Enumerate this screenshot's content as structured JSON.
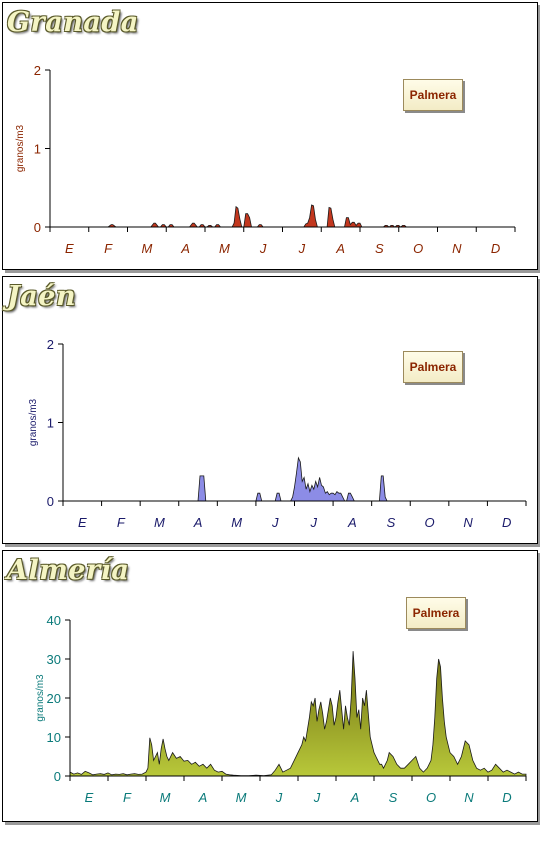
{
  "colors": {
    "granada_axis": "#8b2500",
    "granada_fill": "#c2371e",
    "jaen_axis": "#1a1a6a",
    "jaen_fill": "#8c8ce6",
    "almeria_axis": "#0a7a7a",
    "almeria_fill": "#8a8a14",
    "legend_text": "#8b2500"
  },
  "chart_data": [
    {
      "type": "area",
      "title": "Granada",
      "ylabel": "granos/m3",
      "legend": "Palmera",
      "legend_position": "top-right",
      "ylim": [
        0,
        2
      ],
      "yticks": [
        0,
        1,
        2
      ],
      "months": [
        "E",
        "F",
        "M",
        "A",
        "M",
        "J",
        "J",
        "A",
        "S",
        "O",
        "N",
        "D"
      ],
      "x": [
        0,
        1.5,
        1.58,
        1.62,
        1.7,
        2.6,
        2.68,
        2.72,
        2.8,
        2.85,
        2.9,
        2.95,
        3.0,
        3.05,
        3.1,
        3.15,
        3.2,
        3.25,
        3.3,
        3.6,
        3.68,
        3.72,
        3.8,
        3.85,
        3.9,
        3.95,
        4.0,
        4.05,
        4.1,
        4.15,
        4.2,
        4.25,
        4.3,
        4.35,
        4.4,
        4.45,
        4.5,
        4.55,
        4.6,
        4.65,
        4.7,
        4.75,
        4.8,
        4.85,
        4.9,
        4.95,
        5.0,
        5.05,
        5.1,
        5.15,
        5.2,
        5.25,
        5.3,
        5.35,
        5.4,
        5.45,
        5.5,
        5.55,
        5.6,
        5.65,
        5.7,
        6.55,
        6.6,
        6.65,
        6.7,
        6.75,
        6.8,
        6.85,
        6.9,
        6.95,
        7.0,
        7.05,
        7.1,
        7.15,
        7.2,
        7.25,
        7.3,
        7.35,
        7.4,
        7.6,
        7.65,
        7.7,
        7.75,
        7.8,
        7.85,
        7.9,
        7.95,
        8.0,
        8.05,
        8.1,
        8.15,
        8.2,
        8.25,
        8.3,
        8.6,
        8.65,
        8.7,
        8.75,
        8.8,
        8.85,
        8.9,
        8.95,
        9.0,
        9.05,
        9.1,
        9.15,
        9.2,
        9.3,
        12
      ],
      "y": [
        0,
        0,
        0.03,
        0.03,
        0,
        0,
        0.05,
        0.05,
        0,
        0,
        0.03,
        0.03,
        0,
        0,
        0.03,
        0.03,
        0,
        0,
        0,
        0,
        0.05,
        0.05,
        0,
        0,
        0.03,
        0.03,
        0,
        0,
        0.02,
        0.02,
        0,
        0,
        0.03,
        0.03,
        0,
        0,
        0,
        0,
        0,
        0,
        0,
        0.05,
        0.26,
        0.24,
        0.1,
        0,
        0,
        0.17,
        0.17,
        0.12,
        0,
        0,
        0,
        0,
        0.03,
        0.03,
        0,
        0,
        0,
        0,
        0,
        0,
        0.04,
        0.05,
        0.12,
        0.28,
        0.27,
        0.1,
        0,
        0,
        0,
        0,
        0,
        0,
        0.25,
        0.24,
        0.1,
        0,
        0,
        0,
        0.12,
        0.12,
        0.03,
        0.06,
        0.06,
        0.02,
        0.05,
        0.05,
        0,
        0,
        0,
        0,
        0,
        0,
        0,
        0.02,
        0.02,
        0,
        0.02,
        0.02,
        0,
        0.02,
        0.02,
        0,
        0.02,
        0.02,
        0,
        0,
        0
      ]
    },
    {
      "type": "area",
      "title": "Jaén",
      "ylabel": "granos/m3",
      "legend": "Palmera",
      "legend_position": "top-right",
      "ylim": [
        0,
        2
      ],
      "yticks": [
        0,
        1,
        2
      ],
      "months": [
        "E",
        "F",
        "M",
        "A",
        "M",
        "J",
        "J",
        "A",
        "S",
        "O",
        "N",
        "D"
      ],
      "x": [
        0,
        3.5,
        3.55,
        3.6,
        3.65,
        3.7,
        3.75,
        5.0,
        5.05,
        5.1,
        5.15,
        5.5,
        5.55,
        5.6,
        5.65,
        5.9,
        5.95,
        6.0,
        6.05,
        6.1,
        6.15,
        6.2,
        6.25,
        6.3,
        6.35,
        6.4,
        6.45,
        6.5,
        6.55,
        6.6,
        6.65,
        6.7,
        6.75,
        6.8,
        6.85,
        6.9,
        6.95,
        7.0,
        7.05,
        7.1,
        7.15,
        7.2,
        7.25,
        7.3,
        7.35,
        7.4,
        7.45,
        7.5,
        7.55,
        7.6,
        7.65,
        7.7,
        7.75,
        7.8,
        7.85,
        7.9,
        8.2,
        8.25,
        8.3,
        8.35,
        8.4,
        12
      ],
      "y": [
        0,
        0,
        0.32,
        0.32,
        0.32,
        0,
        0,
        0,
        0.1,
        0.1,
        0,
        0,
        0.1,
        0.1,
        0,
        0,
        0.05,
        0.18,
        0.35,
        0.55,
        0.5,
        0.25,
        0.3,
        0.15,
        0.22,
        0.12,
        0.2,
        0.15,
        0.25,
        0.18,
        0.3,
        0.2,
        0.18,
        0.1,
        0.12,
        0.08,
        0.1,
        0.1,
        0.08,
        0.12,
        0.1,
        0.1,
        0.05,
        0,
        0,
        0.1,
        0.1,
        0.05,
        0,
        0,
        0,
        0,
        0,
        0,
        0,
        0,
        0,
        0.32,
        0.32,
        0.05,
        0,
        0
      ]
    },
    {
      "type": "area",
      "title": "Almería",
      "ylabel": "granos/m3",
      "legend": "Palmera",
      "legend_position": "top-right",
      "ylim": [
        0,
        40
      ],
      "yticks": [
        0,
        10,
        20,
        30,
        40
      ],
      "months": [
        "E",
        "F",
        "M",
        "A",
        "M",
        "J",
        "J",
        "A",
        "S",
        "O",
        "N",
        "D"
      ],
      "x": [
        0,
        0.1,
        0.2,
        0.3,
        0.4,
        0.5,
        0.6,
        0.7,
        0.8,
        0.9,
        1.0,
        1.1,
        1.2,
        1.3,
        1.4,
        1.5,
        1.6,
        1.7,
        1.8,
        1.9,
        2.0,
        2.05,
        2.1,
        2.15,
        2.2,
        2.25,
        2.3,
        2.35,
        2.4,
        2.45,
        2.5,
        2.55,
        2.6,
        2.7,
        2.8,
        2.9,
        3.0,
        3.1,
        3.2,
        3.3,
        3.4,
        3.5,
        3.6,
        3.7,
        3.8,
        3.9,
        4.0,
        4.1,
        4.2,
        4.3,
        4.5,
        4.7,
        4.9,
        5.1,
        5.3,
        5.4,
        5.5,
        5.6,
        5.7,
        5.8,
        5.9,
        6.0,
        6.05,
        6.1,
        6.15,
        6.2,
        6.25,
        6.3,
        6.35,
        6.4,
        6.45,
        6.5,
        6.55,
        6.6,
        6.65,
        6.7,
        6.75,
        6.8,
        6.85,
        6.9,
        6.95,
        7.0,
        7.05,
        7.1,
        7.15,
        7.2,
        7.25,
        7.3,
        7.35,
        7.4,
        7.45,
        7.5,
        7.55,
        7.6,
        7.65,
        7.7,
        7.75,
        7.8,
        7.85,
        7.9,
        7.95,
        8.0,
        8.05,
        8.1,
        8.15,
        8.2,
        8.25,
        8.3,
        8.35,
        8.4,
        8.5,
        8.6,
        8.7,
        8.8,
        8.9,
        9.0,
        9.1,
        9.2,
        9.3,
        9.4,
        9.5,
        9.55,
        9.6,
        9.65,
        9.7,
        9.75,
        9.8,
        9.85,
        9.9,
        9.95,
        10.0,
        10.1,
        10.2,
        10.3,
        10.4,
        10.5,
        10.6,
        10.7,
        10.8,
        10.9,
        11.0,
        11.1,
        11.2,
        11.3,
        11.4,
        11.5,
        11.6,
        11.7,
        11.8,
        11.9,
        12.0
      ],
      "y": [
        1,
        0.5,
        0.8,
        0.4,
        1.2,
        0.8,
        0.3,
        0.5,
        0.6,
        0.4,
        0.8,
        0.3,
        0.5,
        0.4,
        0.6,
        0.3,
        0.5,
        0.6,
        0.4,
        0.5,
        1,
        2,
        9.8,
        8,
        4,
        5,
        6,
        3,
        7,
        9.5,
        7,
        5,
        4,
        6,
        4.5,
        5,
        3.8,
        4,
        3,
        3.5,
        2.5,
        3,
        2,
        3,
        1.5,
        1,
        1.2,
        0.5,
        0.3,
        0.2,
        0.1,
        0.1,
        0.2,
        0.1,
        0.3,
        1.5,
        3,
        1,
        1.5,
        2,
        4,
        6,
        7,
        8,
        10,
        9,
        12,
        15,
        19,
        18,
        20,
        14,
        17,
        19,
        16,
        12,
        14,
        17,
        20,
        18,
        13,
        15,
        19,
        22,
        17,
        12,
        18,
        15,
        13,
        20,
        32,
        25,
        15,
        17,
        12,
        20,
        18,
        22,
        16,
        10,
        8,
        6,
        5,
        4,
        3,
        3,
        2,
        3,
        4,
        6,
        5,
        3,
        2,
        2,
        3,
        4,
        5,
        2,
        1,
        2,
        4,
        8,
        15,
        25,
        30,
        28,
        20,
        14,
        10,
        8,
        6,
        5,
        3,
        5,
        9,
        8,
        4,
        2,
        1.5,
        2,
        1,
        1.5,
        3,
        2,
        1,
        1.5,
        1,
        0.5,
        1,
        0.5,
        0.5
      ]
    }
  ]
}
